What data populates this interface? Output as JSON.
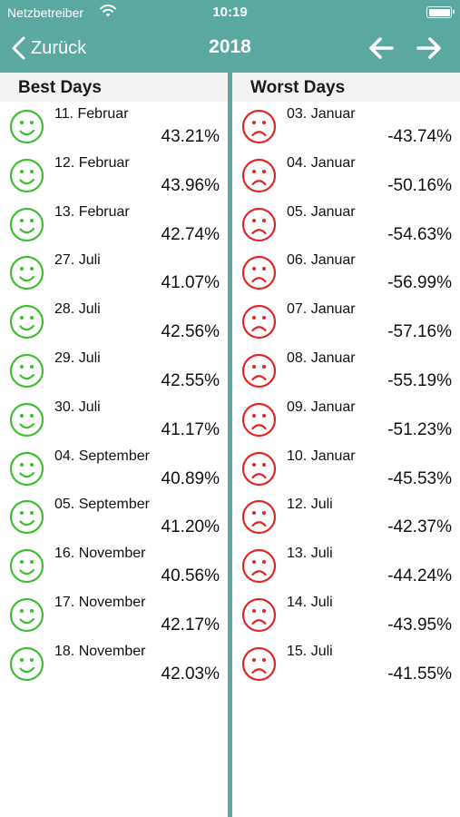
{
  "status": {
    "carrier": "Netzbetreiber",
    "time": "10:19"
  },
  "nav": {
    "back_label": "Zurück",
    "title": "2018"
  },
  "colors": {
    "header": "#5ba8a0",
    "good": "#3cbf2c",
    "bad": "#e22424"
  },
  "best": {
    "title": "Best Days",
    "items": [
      {
        "date": "11. Februar",
        "value": "43.21%"
      },
      {
        "date": "12. Februar",
        "value": "43.96%"
      },
      {
        "date": "13. Februar",
        "value": "42.74%"
      },
      {
        "date": "27. Juli",
        "value": "41.07%"
      },
      {
        "date": "28. Juli",
        "value": "42.56%"
      },
      {
        "date": "29. Juli",
        "value": "42.55%"
      },
      {
        "date": "30. Juli",
        "value": "41.17%"
      },
      {
        "date": "04. September",
        "value": "40.89%"
      },
      {
        "date": "05. September",
        "value": "41.20%"
      },
      {
        "date": "16. November",
        "value": "40.56%"
      },
      {
        "date": "17. November",
        "value": "42.17%"
      },
      {
        "date": "18. November",
        "value": "42.03%"
      }
    ]
  },
  "worst": {
    "title": "Worst Days",
    "items": [
      {
        "date": "03. Januar",
        "value": "-43.74%"
      },
      {
        "date": "04. Januar",
        "value": "-50.16%"
      },
      {
        "date": "05. Januar",
        "value": "-54.63%"
      },
      {
        "date": "06. Januar",
        "value": "-56.99%"
      },
      {
        "date": "07. Januar",
        "value": "-57.16%"
      },
      {
        "date": "08. Januar",
        "value": "-55.19%"
      },
      {
        "date": "09. Januar",
        "value": "-51.23%"
      },
      {
        "date": "10. Januar",
        "value": "-45.53%"
      },
      {
        "date": "12. Juli",
        "value": "-42.37%"
      },
      {
        "date": "13. Juli",
        "value": "-44.24%"
      },
      {
        "date": "14. Juli",
        "value": "-43.95%"
      },
      {
        "date": "15. Juli",
        "value": "-41.55%"
      }
    ]
  }
}
